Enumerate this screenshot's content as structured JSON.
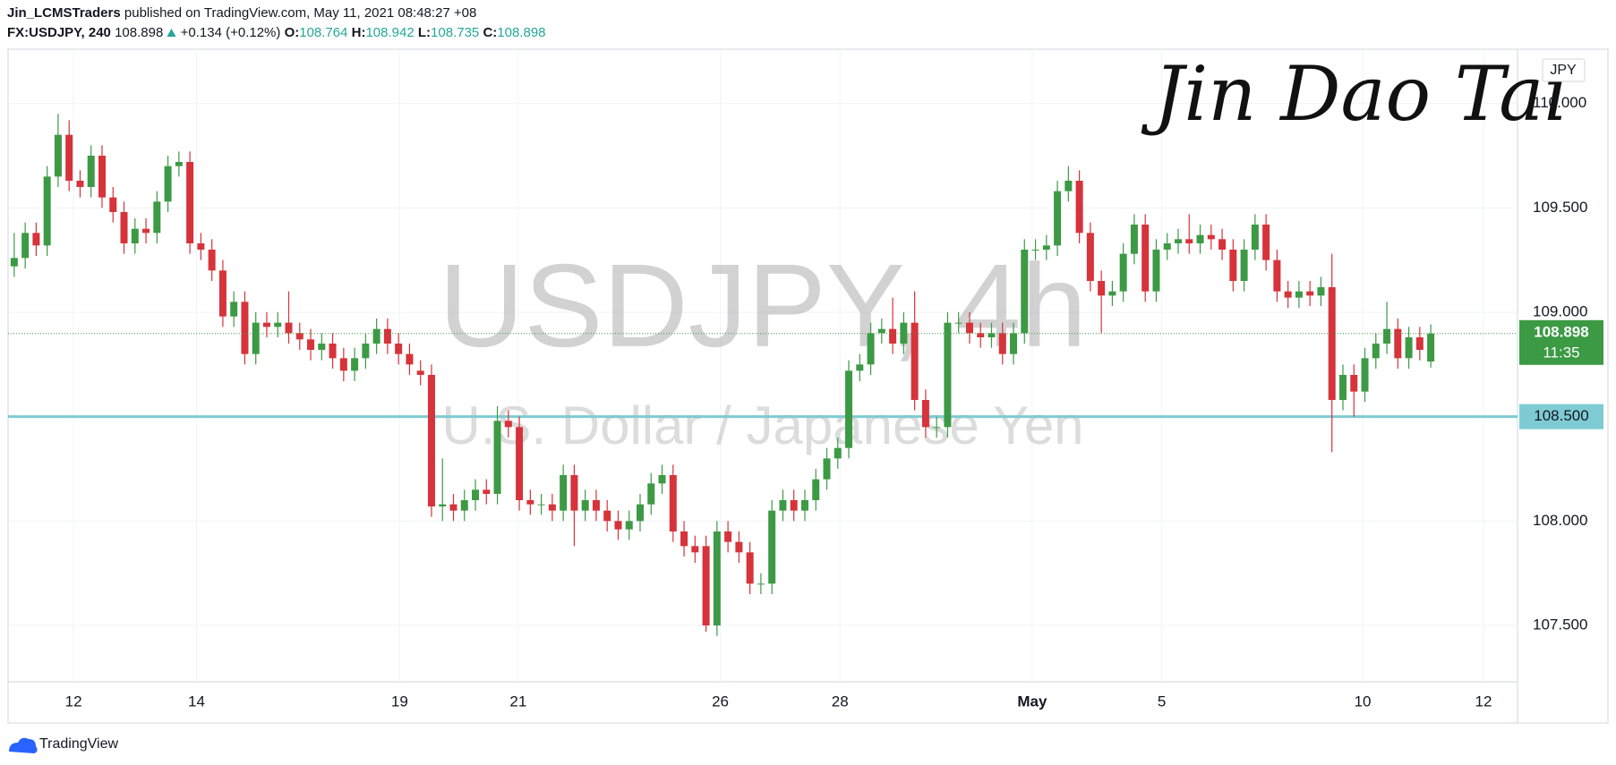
{
  "header": {
    "author": "Jin_LCMSTraders",
    "published": "published on TradingView.com, May 11, 2021 08:48:27 +08",
    "symbol": "FX:USDJPY, 240",
    "change": "+0.134 (+0.12%)",
    "ohlc_labels": [
      "O:",
      "H:",
      "L:",
      "C:"
    ]
  },
  "watermark": {
    "title": "USDJPY, 4h",
    "subtitle": "U.S. Dollar / Japanese Yen"
  },
  "signature": "Jin Dao Tai",
  "currency": "JPY",
  "countdown": "11:35",
  "footer": "TradingView",
  "chart_data": {
    "type": "candlestick",
    "up_color": "#3c9a45",
    "down_color": "#d6333a",
    "grid": true,
    "xlim": [
      -0.56,
      136.9
    ],
    "ylim": [
      107.23,
      110.26
    ],
    "xticks": [
      {
        "value": 5.4,
        "label": "12"
      },
      {
        "value": 16.6,
        "label": "14"
      },
      {
        "value": 35.1,
        "label": "19"
      },
      {
        "value": 45.9,
        "label": "21"
      },
      {
        "value": 64.3,
        "label": "26"
      },
      {
        "value": 75.2,
        "label": "28"
      },
      {
        "value": 92.7,
        "label": "May"
      },
      {
        "value": 104.5,
        "label": "5"
      },
      {
        "value": 122.8,
        "label": "10"
      },
      {
        "value": 133.8,
        "label": "12"
      }
    ],
    "yticks": [
      {
        "value": 107.5,
        "label": "107.500"
      },
      {
        "value": 108,
        "label": "108.000"
      },
      {
        "value": 108.5,
        "label": "108.500"
      },
      {
        "value": 109,
        "label": "109.000"
      },
      {
        "value": 109.5,
        "label": "109.500"
      },
      {
        "value": 110,
        "label": "110.000"
      }
    ],
    "hline": {
      "value": 108.5,
      "label": "108.500",
      "color": "#7ecbd3"
    },
    "x": [
      0,
      1,
      2,
      3,
      4,
      5,
      6,
      7,
      8,
      9,
      10,
      11,
      12,
      13,
      14,
      15,
      16,
      17,
      18,
      19,
      20,
      21,
      22,
      23,
      24,
      25,
      26,
      27,
      28,
      29,
      30,
      31,
      32,
      33,
      34,
      35,
      36,
      37,
      38,
      39,
      40,
      41,
      42,
      43,
      44,
      45,
      46,
      47,
      48,
      49,
      50,
      51,
      52,
      53,
      54,
      55,
      56,
      57,
      58,
      59,
      60,
      61,
      62,
      63,
      64,
      65,
      66,
      67,
      68,
      69,
      70,
      71,
      72,
      73,
      74,
      75,
      76,
      77,
      78,
      79,
      80,
      81,
      82,
      83,
      84,
      85,
      86,
      87,
      88,
      89,
      90,
      91,
      92,
      93,
      94,
      95,
      96,
      97,
      98,
      99,
      100,
      101,
      102,
      103,
      104,
      105,
      106,
      107,
      108,
      109,
      110,
      111,
      112,
      113,
      114,
      115,
      116,
      117,
      118,
      119,
      120,
      121,
      122,
      123,
      124,
      125,
      126,
      127,
      128,
      129
    ],
    "open": [
      109.22,
      109.26,
      109.38,
      109.32,
      109.65,
      109.85,
      109.63,
      109.6,
      109.75,
      109.55,
      109.48,
      109.33,
      109.4,
      109.38,
      109.53,
      109.7,
      109.72,
      109.33,
      109.3,
      109.2,
      108.98,
      109.05,
      108.8,
      108.95,
      108.93,
      108.95,
      108.9,
      108.87,
      108.82,
      108.85,
      108.78,
      108.72,
      108.78,
      108.85,
      108.92,
      108.85,
      108.8,
      108.72,
      108.7,
      108.07,
      108.08,
      108.05,
      108.1,
      108.15,
      108.13,
      108.48,
      108.45,
      108.1,
      108.08,
      108.08,
      108.05,
      108.22,
      108.05,
      108.1,
      108.05,
      108.0,
      107.96,
      108.0,
      108.08,
      108.18,
      108.22,
      107.95,
      107.88,
      107.88,
      107.5,
      107.95,
      107.9,
      107.85,
      107.7,
      107.7,
      108.05,
      108.1,
      108.05,
      108.1,
      108.2,
      108.3,
      108.35,
      108.72,
      108.75,
      108.9,
      108.92,
      108.85,
      108.95,
      108.58,
      108.45,
      108.45,
      108.95,
      108.95,
      108.9,
      108.88,
      108.9,
      108.8,
      108.9,
      109.3,
      109.3,
      109.32,
      109.58,
      109.63,
      109.38,
      109.15,
      109.08,
      109.1,
      109.28,
      109.42,
      109.1,
      109.3,
      109.33,
      109.35,
      109.33,
      109.37,
      109.35,
      109.3,
      109.15,
      109.3,
      109.42,
      109.25,
      109.1,
      109.07,
      109.1,
      109.08,
      109.12,
      108.58,
      108.7,
      108.62,
      108.78,
      108.85,
      108.92,
      108.78,
      108.88,
      108.764
    ],
    "high": [
      109.38,
      109.43,
      109.43,
      109.7,
      109.95,
      109.92,
      109.68,
      109.8,
      109.8,
      109.6,
      109.53,
      109.45,
      109.45,
      109.58,
      109.75,
      109.77,
      109.77,
      109.38,
      109.35,
      109.25,
      109.1,
      109.1,
      109.0,
      109.0,
      109.0,
      109.1,
      108.95,
      108.92,
      108.9,
      108.9,
      108.83,
      108.83,
      108.9,
      108.97,
      108.97,
      108.9,
      108.85,
      108.77,
      108.75,
      108.3,
      108.13,
      108.15,
      108.2,
      108.2,
      108.55,
      108.53,
      108.5,
      108.15,
      108.13,
      108.13,
      108.27,
      108.27,
      108.15,
      108.15,
      108.1,
      108.05,
      108.05,
      108.13,
      108.23,
      108.27,
      108.27,
      108.0,
      107.93,
      107.93,
      108.0,
      108.0,
      107.95,
      107.9,
      107.75,
      108.1,
      108.15,
      108.15,
      108.15,
      108.25,
      108.35,
      108.4,
      108.77,
      108.8,
      108.95,
      108.97,
      109.07,
      109.0,
      109.1,
      108.63,
      108.5,
      109.0,
      109.0,
      109.0,
      108.95,
      108.95,
      108.95,
      108.95,
      109.35,
      109.35,
      109.37,
      109.63,
      109.7,
      109.68,
      109.43,
      109.2,
      109.15,
      109.33,
      109.47,
      109.47,
      109.35,
      109.38,
      109.4,
      109.47,
      109.42,
      109.42,
      109.4,
      109.35,
      109.35,
      109.47,
      109.47,
      109.3,
      109.15,
      109.15,
      109.15,
      109.17,
      109.28,
      108.75,
      108.75,
      108.83,
      108.9,
      109.05,
      108.97,
      108.93,
      108.93,
      108.942
    ],
    "low": [
      109.17,
      109.21,
      109.27,
      109.27,
      109.6,
      109.58,
      109.55,
      109.55,
      109.5,
      109.43,
      109.28,
      109.28,
      109.33,
      109.33,
      109.48,
      109.65,
      109.28,
      109.25,
      109.15,
      108.93,
      108.93,
      108.75,
      108.75,
      108.88,
      108.88,
      108.85,
      108.82,
      108.77,
      108.77,
      108.73,
      108.67,
      108.67,
      108.73,
      108.8,
      108.8,
      108.75,
      108.7,
      108.65,
      108.02,
      108.0,
      108.0,
      108.0,
      108.05,
      108.08,
      108.08,
      108.4,
      108.05,
      108.03,
      108.03,
      108.0,
      108.0,
      107.88,
      108.0,
      108.0,
      107.95,
      107.91,
      107.91,
      107.95,
      108.03,
      108.13,
      107.9,
      107.83,
      107.8,
      107.47,
      107.45,
      107.85,
      107.8,
      107.65,
      107.65,
      107.65,
      108.0,
      108.0,
      108.0,
      108.05,
      108.15,
      108.25,
      108.3,
      108.67,
      108.7,
      108.85,
      108.8,
      108.8,
      108.53,
      108.4,
      108.4,
      108.4,
      108.9,
      108.85,
      108.83,
      108.83,
      108.75,
      108.75,
      108.85,
      109.25,
      109.25,
      109.27,
      109.53,
      109.33,
      109.1,
      108.9,
      109.03,
      109.05,
      109.23,
      109.05,
      109.05,
      109.25,
      109.28,
      109.28,
      109.28,
      109.3,
      109.25,
      109.1,
      109.1,
      109.25,
      109.2,
      109.05,
      109.02,
      109.02,
      109.03,
      109.03,
      108.33,
      108.53,
      108.5,
      108.57,
      108.73,
      108.8,
      108.73,
      108.73,
      108.77,
      108.735
    ],
    "close": [
      109.26,
      109.38,
      109.32,
      109.65,
      109.85,
      109.63,
      109.6,
      109.75,
      109.55,
      109.48,
      109.33,
      109.4,
      109.38,
      109.53,
      109.7,
      109.72,
      109.33,
      109.3,
      109.2,
      108.98,
      109.05,
      108.8,
      108.95,
      108.93,
      108.95,
      108.9,
      108.87,
      108.82,
      108.85,
      108.78,
      108.72,
      108.78,
      108.85,
      108.92,
      108.85,
      108.8,
      108.75,
      108.7,
      108.07,
      108.08,
      108.05,
      108.1,
      108.15,
      108.13,
      108.48,
      108.45,
      108.1,
      108.08,
      108.08,
      108.05,
      108.22,
      108.05,
      108.1,
      108.05,
      108.0,
      107.96,
      108.0,
      108.08,
      108.18,
      108.22,
      107.95,
      107.88,
      107.85,
      107.5,
      107.95,
      107.9,
      107.85,
      107.7,
      107.7,
      108.05,
      108.1,
      108.05,
      108.1,
      108.2,
      108.3,
      108.35,
      108.72,
      108.75,
      108.9,
      108.92,
      108.85,
      108.95,
      108.58,
      108.45,
      108.45,
      108.95,
      108.95,
      108.9,
      108.88,
      108.9,
      108.8,
      108.9,
      109.3,
      109.3,
      109.32,
      109.58,
      109.63,
      109.38,
      109.15,
      109.08,
      109.1,
      109.28,
      109.42,
      109.1,
      109.3,
      109.33,
      109.35,
      109.33,
      109.37,
      109.35,
      109.3,
      109.15,
      109.3,
      109.42,
      109.25,
      109.1,
      109.07,
      109.1,
      109.08,
      109.12,
      108.58,
      108.7,
      108.62,
      108.78,
      108.85,
      108.92,
      108.78,
      108.88,
      108.82,
      108.898
    ]
  }
}
